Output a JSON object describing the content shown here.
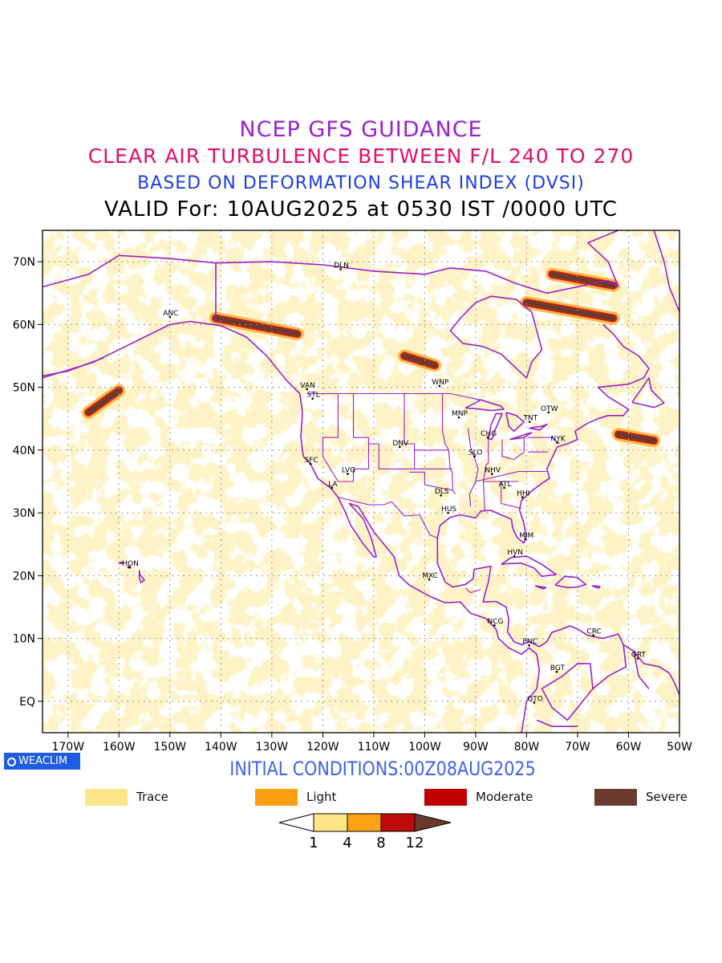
{
  "titles": {
    "line1": "NCEP GFS GUIDANCE",
    "line2": "CLEAR AIR TURBULENCE BETWEEN F/L 240 TO 270",
    "line3": "BASED ON DEFORMATION SHEAR INDEX (DVSI)",
    "line4": "VALID For: 10AUG2025 at 0530 IST /0000 UTC"
  },
  "colors": {
    "line1": "#9b20d0",
    "line2": "#e0106a",
    "line3": "#1d3fe0",
    "line4": "#000000",
    "coastline": "#9b1fc8",
    "grid": "#9a9a9a"
  },
  "map": {
    "lat_labels": [
      "70N",
      "60N",
      "50N",
      "40N",
      "30N",
      "20N",
      "10N",
      "EQ"
    ],
    "lon_labels": [
      "170W",
      "160W",
      "150W",
      "140W",
      "130W",
      "120W",
      "110W",
      "100W",
      "90W",
      "80W",
      "70W",
      "60W",
      "50W"
    ],
    "lon_range": [
      -175,
      -50
    ],
    "lat_range": [
      -5,
      75
    ],
    "stations": [
      {
        "code": "DLN",
        "lon": -116.5,
        "lat": 68.8
      },
      {
        "code": "ANC",
        "lon": -150.0,
        "lat": 61.2
      },
      {
        "code": "VAN",
        "lon": -123.1,
        "lat": 49.7
      },
      {
        "code": "STL",
        "lon": -122.0,
        "lat": 48.2
      },
      {
        "code": "WNP",
        "lon": -97.1,
        "lat": 50.2
      },
      {
        "code": "MNP",
        "lon": -93.3,
        "lat": 45.2
      },
      {
        "code": "OTW",
        "lon": -75.7,
        "lat": 46.0
      },
      {
        "code": "TNT",
        "lon": -79.4,
        "lat": 44.5
      },
      {
        "code": "CHG",
        "lon": -87.6,
        "lat": 42.0
      },
      {
        "code": "NYK",
        "lon": -74.0,
        "lat": 41.2
      },
      {
        "code": "DNV",
        "lon": -104.9,
        "lat": 40.5
      },
      {
        "code": "SFC",
        "lon": -122.4,
        "lat": 37.8
      },
      {
        "code": "SLO",
        "lon": -90.2,
        "lat": 39.0
      },
      {
        "code": "LVG",
        "lon": -115.1,
        "lat": 36.2
      },
      {
        "code": "NHV",
        "lon": -86.8,
        "lat": 36.2
      },
      {
        "code": "LA",
        "lon": -118.2,
        "lat": 34.0
      },
      {
        "code": "ATL",
        "lon": -84.4,
        "lat": 34.0
      },
      {
        "code": "DLS",
        "lon": -96.8,
        "lat": 32.8
      },
      {
        "code": "HHI",
        "lon": -80.8,
        "lat": 32.5
      },
      {
        "code": "HUS",
        "lon": -95.4,
        "lat": 30.0
      },
      {
        "code": "MIM",
        "lon": -80.2,
        "lat": 25.8
      },
      {
        "code": "HON",
        "lon": -157.9,
        "lat": 21.3
      },
      {
        "code": "HVN",
        "lon": -82.4,
        "lat": 23.1
      },
      {
        "code": "MXC",
        "lon": -99.1,
        "lat": 19.4
      },
      {
        "code": "NCG",
        "lon": -86.3,
        "lat": 12.1
      },
      {
        "code": "CRC",
        "lon": -66.9,
        "lat": 10.5
      },
      {
        "code": "PNC",
        "lon": -79.5,
        "lat": 8.9
      },
      {
        "code": "GRT",
        "lon": -58.2,
        "lat": 6.8
      },
      {
        "code": "BGT",
        "lon": -74.1,
        "lat": 4.7
      },
      {
        "code": "QTO",
        "lon": -78.5,
        "lat": -0.2
      }
    ],
    "severe_bands": [
      {
        "lon": [
          -141,
          -125
        ],
        "lat": [
          61,
          58.5
        ]
      },
      {
        "lon": [
          -104,
          -98
        ],
        "lat": [
          55,
          53.5
        ]
      },
      {
        "lon": [
          -62,
          -55
        ],
        "lat": [
          42.5,
          41.5
        ]
      },
      {
        "lon": [
          -80,
          -63
        ],
        "lat": [
          63.5,
          61
        ]
      },
      {
        "lon": [
          -75,
          -63
        ],
        "lat": [
          68,
          66.2
        ]
      },
      {
        "lon": [
          -166,
          -160
        ],
        "lat": [
          46,
          49.5
        ]
      }
    ]
  },
  "branding": {
    "label": "WEACLIM"
  },
  "initial_conditions": "INITIAL CONDITIONS:00Z08AUG2025",
  "legend": [
    {
      "label": "Trace",
      "color": "#fde68a"
    },
    {
      "label": "Light",
      "color": "#fb9f13"
    },
    {
      "label": "Moderate",
      "color": "#c00000"
    },
    {
      "label": "Severe",
      "color": "#6b3a2e"
    }
  ],
  "colorbar": {
    "labels": [
      "1",
      "4",
      "8",
      "12"
    ],
    "colors": [
      "#ffffff",
      "#fde68a",
      "#fba315",
      "#bf0b0b",
      "#6b3a2e"
    ]
  }
}
